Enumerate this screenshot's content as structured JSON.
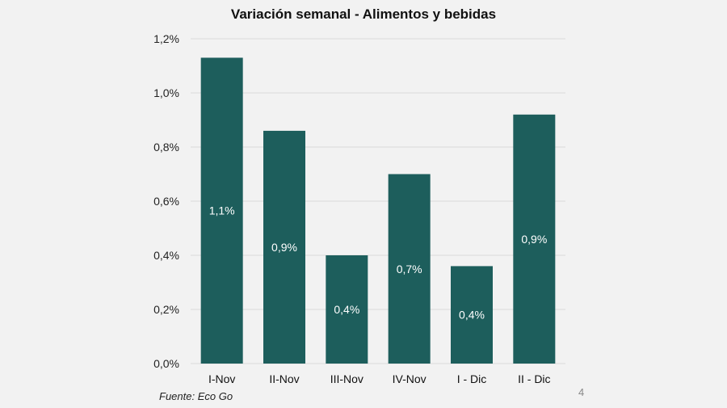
{
  "chart_data": {
    "type": "bar",
    "title": "Variación semanal - Alimentos y bebidas",
    "categories": [
      "I-Nov",
      "II-Nov",
      "III-Nov",
      "IV-Nov",
      "I - Dic",
      "II - Dic"
    ],
    "values": [
      1.13,
      0.86,
      0.4,
      0.7,
      0.36,
      0.92
    ],
    "data_labels": [
      "1,1%",
      "0,9%",
      "0,4%",
      "0,7%",
      "0,4%",
      "0,9%"
    ],
    "xlabel": "",
    "ylabel": "",
    "ylim": [
      0,
      1.2
    ],
    "yticks": [
      "0,0%",
      "0,2%",
      "0,4%",
      "0,6%",
      "0,8%",
      "1,0%",
      "1,2%"
    ],
    "grid": true,
    "bar_color": "#1d5e5c"
  },
  "source": "Fuente: Eco Go",
  "page_number": "4"
}
